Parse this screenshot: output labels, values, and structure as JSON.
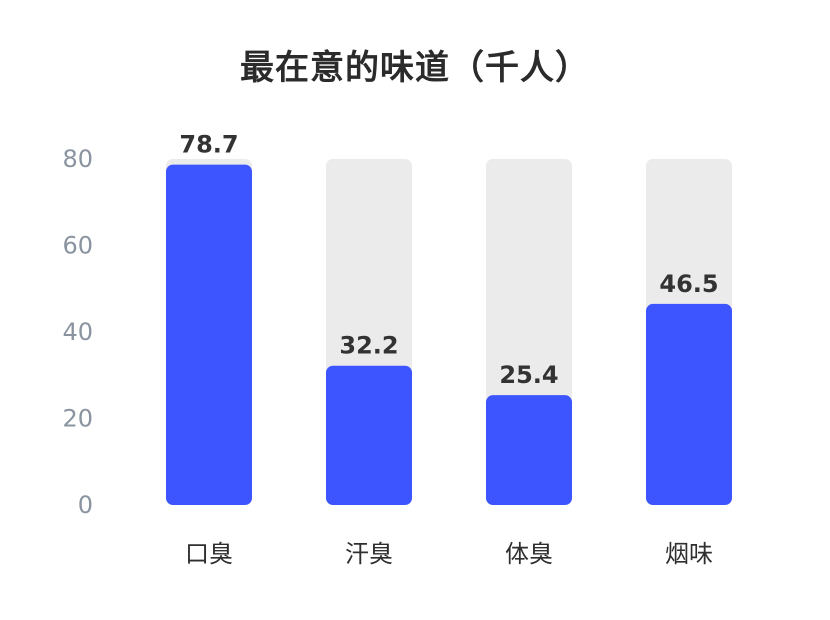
{
  "chart_data": {
    "type": "bar",
    "title": "最在意的味道（千人）",
    "xlabel": "",
    "ylabel": "",
    "categories": [
      "口臭",
      "汗臭",
      "体臭",
      "烟味"
    ],
    "values": [
      78.7,
      32.2,
      25.4,
      46.5
    ],
    "value_labels": [
      "78.7",
      "32.2",
      "25.4",
      "46.5"
    ],
    "ylim": [
      0,
      80
    ],
    "yticks": [
      0,
      20,
      40,
      60,
      80
    ],
    "ytick_labels": [
      "0",
      "20",
      "40",
      "60",
      "80"
    ],
    "grid": false,
    "legend": "none",
    "colors": {
      "bar": "#3d55ff",
      "track": "#ebebeb",
      "tick_text": "#8a94a0",
      "category_text": "#2f2f2f",
      "value_text": "#333333",
      "title_text": "#2b2b2b"
    }
  }
}
